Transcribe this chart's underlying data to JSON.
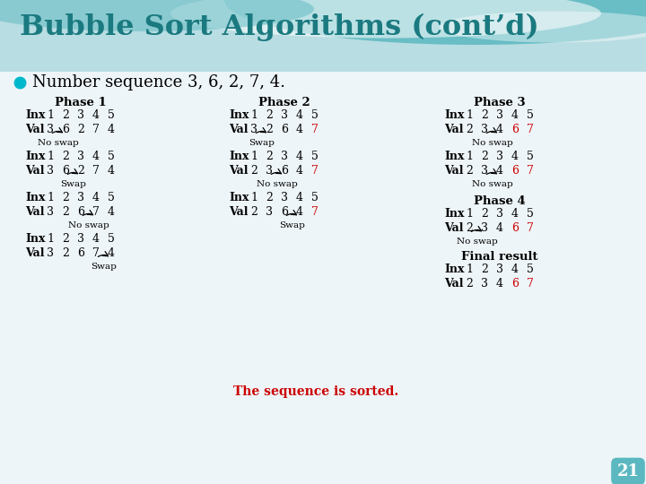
{
  "title": "Bubble Sort Algorithms (cont’d)",
  "subtitle": "Number sequence 3, 6, 2, 7, 4.",
  "title_color": "#1A7A80",
  "text_color": "#000000",
  "red_color": "#CC0000",
  "header_bg": "#A8D8DC",
  "wave1_color": "#5BB8C0",
  "wave2_color": "#FFFFFF",
  "content_bg": "#EEF5F8",
  "bullet_color": "#00B8CC",
  "phase1": {
    "label": "Phase 1",
    "col": 0,
    "steps": [
      {
        "val": [
          3,
          6,
          2,
          7,
          4
        ],
        "red": [],
        "arrow": [
          0,
          1
        ],
        "action": "No swap"
      },
      {
        "val": [
          3,
          6,
          2,
          7,
          4
        ],
        "red": [],
        "arrow": [
          1,
          2
        ],
        "action": "Swap"
      },
      {
        "val": [
          3,
          2,
          6,
          7,
          4
        ],
        "red": [],
        "arrow": [
          2,
          3
        ],
        "action": "No swap"
      },
      {
        "val": [
          3,
          2,
          6,
          7,
          4
        ],
        "red": [],
        "arrow": [
          3,
          4
        ],
        "action": "Swap"
      }
    ]
  },
  "phase2": {
    "label": "Phase 2",
    "col": 1,
    "steps": [
      {
        "val": [
          3,
          2,
          6,
          4,
          7
        ],
        "red": [
          4
        ],
        "arrow": [
          0,
          1
        ],
        "action": "Swap"
      },
      {
        "val": [
          2,
          3,
          6,
          4,
          7
        ],
        "red": [
          4
        ],
        "arrow": [
          1,
          2
        ],
        "action": "No swap"
      },
      {
        "val": [
          2,
          3,
          6,
          4,
          7
        ],
        "red": [
          4
        ],
        "arrow": [
          2,
          3
        ],
        "action": "Swap"
      }
    ]
  },
  "phase3": {
    "label": "Phase 3",
    "col": 2,
    "steps": [
      {
        "val": [
          2,
          3,
          4,
          6,
          7
        ],
        "red": [
          3,
          4
        ],
        "arrow": [
          1,
          2
        ],
        "action": "No swap"
      },
      {
        "val": [
          2,
          3,
          4,
          6,
          7
        ],
        "red": [
          3,
          4
        ],
        "arrow": [
          1,
          2
        ],
        "action": "No swap"
      }
    ]
  },
  "phase4": {
    "label": "Phase 4",
    "steps": [
      {
        "val": [
          2,
          3,
          4,
          6,
          7
        ],
        "red": [
          3,
          4
        ],
        "arrow": [
          0,
          1
        ],
        "action": "No swap"
      }
    ]
  },
  "final": {
    "label": "Final result",
    "val": [
      2,
      3,
      4,
      6,
      7
    ],
    "red": [
      3,
      4
    ]
  },
  "sorted_msg": "The sequence is sorted.",
  "page_num": "21"
}
